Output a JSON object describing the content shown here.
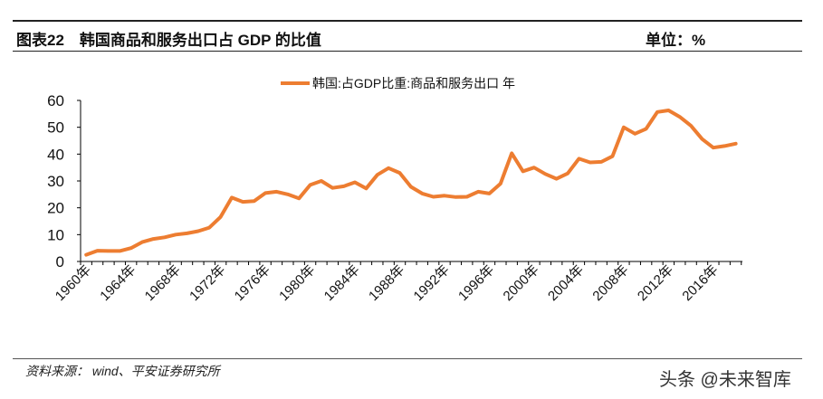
{
  "header": {
    "title": "图表22　韩国商品和服务出口占 GDP 的比值",
    "unit": "单位：%"
  },
  "footer": {
    "source": "资料来源：  wind、平安证券研究所",
    "watermark": "头条 @未来智库"
  },
  "chart_data": {
    "type": "line",
    "title": "",
    "xlabel": "",
    "ylabel": "",
    "ylim": [
      0,
      60
    ],
    "yticks": [
      0,
      10,
      20,
      30,
      40,
      50,
      60
    ],
    "xtick_labels": [
      "1960年",
      "1964年",
      "1968年",
      "1972年",
      "1976年",
      "1980年",
      "1984年",
      "1988年",
      "1992年",
      "1996年",
      "2000年",
      "2004年",
      "2008年",
      "2012年",
      "2016年"
    ],
    "legend": "top",
    "grid": false,
    "color": "#ED7D31",
    "x": [
      1960,
      1961,
      1962,
      1963,
      1964,
      1965,
      1966,
      1967,
      1968,
      1969,
      1970,
      1971,
      1972,
      1973,
      1974,
      1975,
      1976,
      1977,
      1978,
      1979,
      1980,
      1981,
      1982,
      1983,
      1984,
      1985,
      1986,
      1987,
      1988,
      1989,
      1990,
      1991,
      1992,
      1993,
      1994,
      1995,
      1996,
      1997,
      1998,
      1999,
      2000,
      2001,
      2002,
      2003,
      2004,
      2005,
      2006,
      2007,
      2008,
      2009,
      2010,
      2011,
      2012,
      2013,
      2014,
      2015,
      2016,
      2017,
      2018
    ],
    "series": [
      {
        "name": "韩国:占GDP比重:商品和服务出口 年",
        "values": [
          2.5,
          4,
          3.9,
          3.9,
          5,
          7.2,
          8.4,
          9,
          10,
          10.5,
          11.3,
          12.6,
          16.6,
          23.8,
          22.2,
          22.5,
          25.5,
          26,
          25,
          23.5,
          28.5,
          30,
          27.4,
          28,
          29.5,
          27.2,
          32.3,
          34.8,
          33,
          27.8,
          25.3,
          24.1,
          24.5,
          24,
          24.1,
          26,
          25.3,
          29,
          40.3,
          33.6,
          35,
          32.6,
          30.8,
          32.8,
          38.3,
          36.9,
          37.1,
          39.2,
          50,
          47.6,
          49.4,
          55.7,
          56.3,
          53.9,
          50.6,
          45.6,
          42.4,
          43,
          43.9
        ]
      }
    ]
  }
}
